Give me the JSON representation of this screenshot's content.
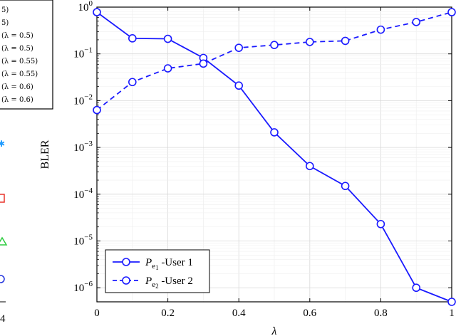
{
  "left_fragment": {
    "legend_entries": [
      "5)",
      "5)",
      "(λ = 0.5)",
      "(λ = 0.5)",
      "(λ = 0.55)",
      "(λ = 0.55)",
      "(λ = 0.6)",
      "(λ = 0.6)"
    ],
    "x_tick_fragment": "4",
    "marker_colors": [
      "#1f9bff",
      "#e8342c",
      "#2ecc40",
      "#2233dd"
    ]
  },
  "chart_data": {
    "type": "line",
    "xlabel": "λ",
    "ylabel": "BLER",
    "xlim": [
      0,
      1
    ],
    "ylim": [
      5e-07,
      1
    ],
    "yscale": "log",
    "grid": true,
    "legend_position": "bottom-left",
    "x_ticks": [
      "0",
      "0.2",
      "0.4",
      "0.6",
      "0.8",
      "1"
    ],
    "x_tick_values": [
      0,
      0.2,
      0.4,
      0.6,
      0.8,
      1
    ],
    "y_ticks": [
      {
        "base": "10",
        "exp": "0",
        "value": 1
      },
      {
        "base": "10",
        "exp": "−1",
        "value": 0.1
      },
      {
        "base": "10",
        "exp": "−2",
        "value": 0.01
      },
      {
        "base": "10",
        "exp": "−3",
        "value": 0.001
      },
      {
        "base": "10",
        "exp": "−4",
        "value": 0.0001
      },
      {
        "base": "10",
        "exp": "−5",
        "value": 1e-05
      },
      {
        "base": "10",
        "exp": "−6",
        "value": 1e-06
      }
    ],
    "x": [
      0,
      0.1,
      0.2,
      0.3,
      0.4,
      0.5,
      0.6,
      0.7,
      0.8,
      0.9,
      1.0
    ],
    "series": [
      {
        "name": "P_e1 -User 1",
        "legend_main": "P",
        "legend_sub": "e",
        "legend_subsub": "1",
        "legend_suffix": " -User 1",
        "style": "solid",
        "color": "#1a1aff",
        "values": [
          0.78,
          0.215,
          0.21,
          0.082,
          0.021,
          0.0021,
          0.0004,
          0.00015,
          2.3e-05,
          1e-06,
          5e-07
        ]
      },
      {
        "name": "P_e2 -User 2",
        "legend_main": "P",
        "legend_sub": "e",
        "legend_subsub": "2",
        "legend_suffix": " -User 2",
        "style": "dashed",
        "color": "#1a1aff",
        "values": [
          0.0063,
          0.025,
          0.049,
          0.062,
          0.135,
          0.155,
          0.18,
          0.19,
          0.33,
          0.48,
          0.78
        ]
      }
    ]
  }
}
